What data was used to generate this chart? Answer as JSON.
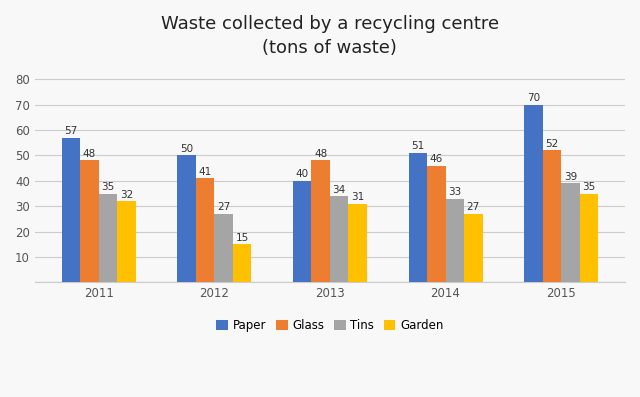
{
  "title": "Waste collected by a recycling centre\n(tons of waste)",
  "years": [
    "2011",
    "2012",
    "2013",
    "2014",
    "2015"
  ],
  "categories": [
    "Paper",
    "Glass",
    "Tins",
    "Garden"
  ],
  "values": {
    "Paper": [
      57,
      50,
      40,
      51,
      70
    ],
    "Glass": [
      48,
      41,
      48,
      46,
      52
    ],
    "Tins": [
      35,
      27,
      34,
      33,
      39
    ],
    "Garden": [
      32,
      15,
      31,
      27,
      35
    ]
  },
  "colors": {
    "Paper": "#4472c4",
    "Glass": "#ed7d31",
    "Tins": "#a5a5a5",
    "Garden": "#ffc000"
  },
  "ylim": [
    0,
    85
  ],
  "yticks": [
    0,
    10,
    20,
    30,
    40,
    50,
    60,
    70,
    80
  ],
  "bar_width": 0.16,
  "title_fontsize": 13,
  "label_fontsize": 7.5,
  "tick_fontsize": 8.5,
  "legend_fontsize": 8.5,
  "background_color": "#f8f8f8",
  "plot_background": "#f8f8f8",
  "grid_color": "#cccccc"
}
